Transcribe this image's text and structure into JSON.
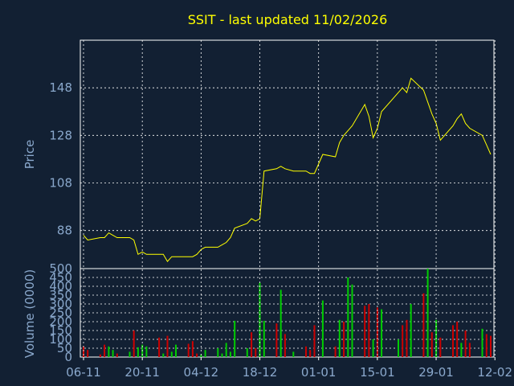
{
  "title": "SSIT - last updated 11/02/2026",
  "colors": {
    "background": "#122033",
    "grid": "#ffffff",
    "price_line": "#ffff00",
    "volume_up": "#00cc00",
    "volume_down": "#cc0000",
    "text": "#8aa8cc",
    "title": "#ffff00"
  },
  "chart_data": [
    {
      "type": "line",
      "ylabel": "Price",
      "ylim": [
        72,
        168
      ],
      "yticks": [
        88,
        108,
        128,
        148
      ],
      "grid": true,
      "x": [
        "2025-11-06",
        "2025-11-07",
        "2025-11-10",
        "2025-11-11",
        "2025-11-12",
        "2025-11-13",
        "2025-11-14",
        "2025-11-17",
        "2025-11-18",
        "2025-11-19",
        "2025-11-20",
        "2025-11-21",
        "2025-11-24",
        "2025-11-25",
        "2025-11-26",
        "2025-11-27",
        "2025-11-28",
        "2025-12-01",
        "2025-12-02",
        "2025-12-03",
        "2025-12-04",
        "2025-12-05",
        "2025-12-08",
        "2025-12-09",
        "2025-12-10",
        "2025-12-11",
        "2025-12-12",
        "2025-12-15",
        "2025-12-16",
        "2025-12-17",
        "2025-12-18",
        "2025-12-19",
        "2025-12-22",
        "2025-12-23",
        "2025-12-24",
        "2025-12-26",
        "2025-12-29",
        "2025-12-30",
        "2025-12-31",
        "2026-01-02",
        "2026-01-05",
        "2026-01-06",
        "2026-01-07",
        "2026-01-08",
        "2026-01-09",
        "2026-01-12",
        "2026-01-13",
        "2026-01-14",
        "2026-01-15",
        "2026-01-16",
        "2026-01-20",
        "2026-01-21",
        "2026-01-22",
        "2026-01-23",
        "2026-01-26",
        "2026-01-27",
        "2026-01-28",
        "2026-01-29",
        "2026-01-30",
        "2026-02-02",
        "2026-02-03",
        "2026-02-04",
        "2026-02-05",
        "2026-02-06",
        "2026-02-09",
        "2026-02-10",
        "2026-02-11"
      ],
      "series": [
        {
          "values": [
            86,
            84,
            85,
            85,
            87,
            86,
            85,
            85,
            84,
            78,
            79,
            78,
            78,
            78,
            75,
            77,
            77,
            77,
            77,
            78,
            80,
            81,
            81,
            82,
            83,
            85,
            89,
            91,
            93,
            92,
            93,
            113,
            114,
            115,
            114,
            113,
            113,
            112,
            112,
            120,
            119,
            125,
            128,
            130,
            132,
            141,
            136,
            127,
            131,
            138,
            146,
            148,
            146,
            152,
            147,
            142,
            137,
            133,
            126,
            132,
            135,
            137,
            133,
            131,
            128,
            124,
            120
          ],
          "markers": false
        }
      ],
      "visible_series_values_note": ""
    },
    {
      "type": "bar",
      "ylabel": "Volume (0000)",
      "ylim": [
        0,
        500
      ],
      "yticks": [
        0,
        50,
        100,
        150,
        200,
        250,
        300,
        350,
        400,
        450,
        500
      ],
      "grid": true,
      "x": [
        "2025-11-06",
        "2025-11-07",
        "2025-11-10",
        "2025-11-11",
        "2025-11-12",
        "2025-11-13",
        "2025-11-14",
        "2025-11-17",
        "2025-11-18",
        "2025-11-19",
        "2025-11-20",
        "2025-11-21",
        "2025-11-24",
        "2025-11-25",
        "2025-11-26",
        "2025-11-27",
        "2025-11-28",
        "2025-12-01",
        "2025-12-02",
        "2025-12-03",
        "2025-12-04",
        "2025-12-05",
        "2025-12-08",
        "2025-12-09",
        "2025-12-10",
        "2025-12-11",
        "2025-12-12",
        "2025-12-15",
        "2025-12-16",
        "2025-12-17",
        "2025-12-18",
        "2025-12-19",
        "2025-12-22",
        "2025-12-23",
        "2025-12-24",
        "2025-12-26",
        "2025-12-29",
        "2025-12-30",
        "2025-12-31",
        "2026-01-02",
        "2026-01-05",
        "2026-01-06",
        "2026-01-07",
        "2026-01-08",
        "2026-01-09",
        "2026-01-12",
        "2026-01-13",
        "2026-01-14",
        "2026-01-15",
        "2026-01-16",
        "2026-01-20",
        "2026-01-21",
        "2026-01-22",
        "2026-01-23",
        "2026-01-26",
        "2026-01-27",
        "2026-01-28",
        "2026-01-29",
        "2026-01-30",
        "2026-02-02",
        "2026-02-03",
        "2026-02-04",
        "2026-02-05",
        "2026-02-06",
        "2026-02-09",
        "2026-02-10",
        "2026-02-11"
      ],
      "xticks": [
        "06-11",
        "20-11",
        "04-12",
        "18-12",
        "01-01",
        "15-01",
        "29-01",
        "12-02"
      ],
      "values": [
        60,
        40,
        15,
        70,
        60,
        40,
        20,
        30,
        150,
        55,
        70,
        60,
        110,
        20,
        120,
        30,
        70,
        75,
        90,
        20,
        15,
        40,
        50,
        20,
        80,
        30,
        205,
        50,
        140,
        50,
        420,
        205,
        190,
        380,
        130,
        30,
        60,
        40,
        180,
        320,
        60,
        210,
        200,
        450,
        410,
        290,
        300,
        100,
        280,
        270,
        100,
        180,
        210,
        300,
        360,
        500,
        140,
        210,
        110,
        180,
        200,
        80,
        150,
        80,
        160,
        130,
        120
      ],
      "up": [
        false,
        false,
        false,
        false,
        true,
        true,
        false,
        true,
        false,
        true,
        true,
        true,
        false,
        true,
        false,
        true,
        true,
        false,
        false,
        false,
        true,
        true,
        true,
        true,
        true,
        true,
        true,
        true,
        false,
        false,
        true,
        true,
        false,
        true,
        false,
        true,
        false,
        false,
        false,
        true,
        false,
        true,
        false,
        true,
        true,
        false,
        false,
        true,
        false,
        true,
        true,
        false,
        false,
        true,
        false,
        true,
        false,
        true,
        false,
        false,
        false,
        true,
        false,
        false,
        true,
        false,
        false
      ]
    }
  ]
}
